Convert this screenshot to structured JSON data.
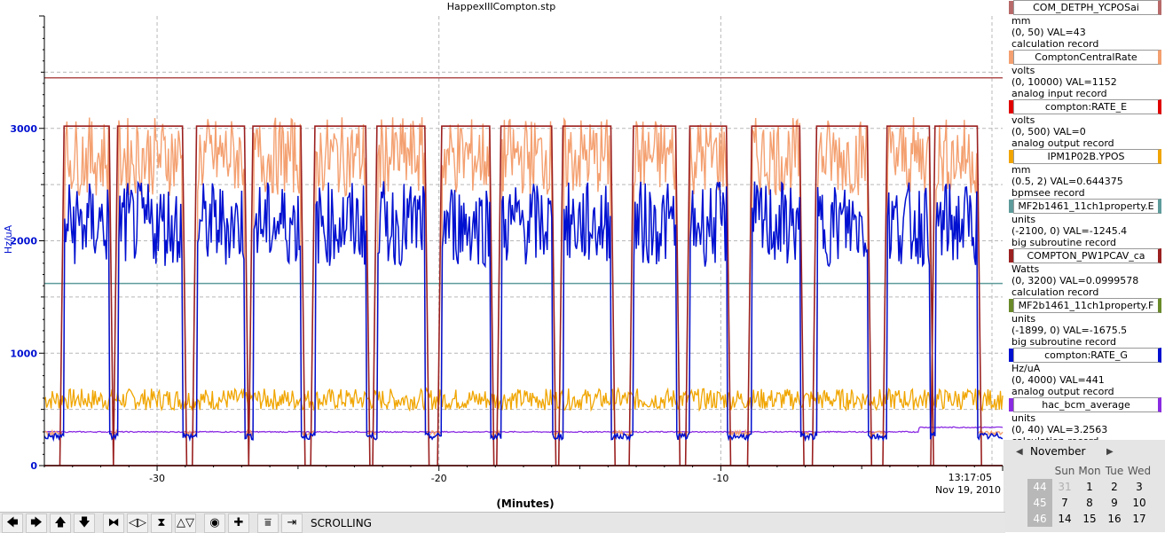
{
  "window": {
    "title": "HappexIIICompton.stp"
  },
  "chart_data": {
    "type": "line",
    "title": "HappexIIICompton.stp",
    "xlabel": "(Minutes)",
    "ylabel": "Hz/uA",
    "xlim": [
      -34,
      0
    ],
    "ylim": [
      0,
      4000
    ],
    "grid": true,
    "x_ticks": [
      "-30",
      "-20",
      "-10"
    ],
    "y_ticks": [
      "0",
      "1000",
      "2000",
      "3000"
    ],
    "time_label": "13:17:05",
    "date_label": "Nov 19, 2010",
    "pulses": [
      {
        "start": -33.3,
        "end": -31.7
      },
      {
        "start": -31.4,
        "end": -29.1
      },
      {
        "start": -28.6,
        "end": -26.9
      },
      {
        "start": -26.6,
        "end": -24.9
      },
      {
        "start": -24.4,
        "end": -22.6
      },
      {
        "start": -22.2,
        "end": -20.5
      },
      {
        "start": -19.9,
        "end": -18.2
      },
      {
        "start": -17.8,
        "end": -16.0
      },
      {
        "start": -15.6,
        "end": -13.9
      },
      {
        "start": -13.1,
        "end": -11.6
      },
      {
        "start": -11.1,
        "end": -9.8
      },
      {
        "start": -8.9,
        "end": -7.2
      },
      {
        "start": -6.6,
        "end": -4.8
      },
      {
        "start": -4.1,
        "end": -2.6
      },
      {
        "start": -2.4,
        "end": -0.9
      }
    ],
    "series": [
      {
        "name": "COM_DETPH_YCPOSai",
        "color": "#b05050",
        "constant": 3450
      },
      {
        "name": "ComptonCentralRate",
        "color": "#f4a070",
        "on_level": 2750,
        "off_level": 290,
        "noise": 350
      },
      {
        "name": "compton:RATE_E",
        "color": "#d40000",
        "constant": 0
      },
      {
        "name": "IPM1P02B.YPOS",
        "color": "#f0a500",
        "base": 590,
        "noise": 120
      },
      {
        "name": "MF2b1461_11ch1property.E",
        "color": "#5e9b9b",
        "constant": 1620
      },
      {
        "name": "COMPTON_PW1PCAV_ca",
        "color": "#9b2020",
        "on_level": 3020,
        "off_level": 0
      },
      {
        "name": "compton:RATE_G",
        "color": "#0010d0",
        "on_level": 2150,
        "off_level": 260,
        "noise": 380
      },
      {
        "name": "hac_bcm_average",
        "color": "#8a2be2",
        "base": 300
      }
    ]
  },
  "legend": [
    {
      "name": "COM_DETPH_YCPOSai",
      "color": "#b86a6a",
      "units": "mm",
      "range": "(0, 50) VAL=43",
      "record": "calculation record"
    },
    {
      "name": "ComptonCentralRate",
      "color": "#f4a070",
      "units": "volts",
      "range": "(0, 10000) VAL=1152",
      "record": "analog input record"
    },
    {
      "name": "compton:RATE_E",
      "color": "#e00000",
      "units": "volts",
      "range": "(0, 500) VAL=0",
      "record": "analog output record"
    },
    {
      "name": "IPM1P02B.YPOS",
      "color": "#f0a500",
      "units": "mm",
      "range": "(0.5, 2) VAL=0.644375",
      "record": "bpmsee record"
    },
    {
      "name": "MF2b1461_11ch1property.E",
      "color": "#5e9b9b",
      "units": "units",
      "range": "(-2100, 0) VAL=-1245.4",
      "record": "big subroutine record"
    },
    {
      "name": "COMPTON_PW1PCAV_ca",
      "color": "#9b2020",
      "units": "Watts",
      "range": "(0, 3200) VAL=0.0999578",
      "record": "calculation record"
    },
    {
      "name": "MF2b1461_11ch1property.F",
      "color": "#6a8a2a",
      "units": "units",
      "range": "(-1899, 0) VAL=-1675.5",
      "record": "big subroutine record"
    },
    {
      "name": "compton:RATE_G",
      "color": "#0010d0",
      "units": "Hz/uA",
      "range": "(0, 4000) VAL=441",
      "record": "analog output record"
    },
    {
      "name": "hac_bcm_average",
      "color": "#8a2be2",
      "units": "units",
      "range": "(0, 40) VAL=3.2563",
      "record": "calculation record"
    }
  ],
  "calendar": {
    "month": "November",
    "weekdays": [
      "Sun",
      "Mon",
      "Tue",
      "Wed"
    ],
    "weeks": [
      {
        "num": "44",
        "days": [
          "31",
          "1",
          "2",
          "3"
        ]
      },
      {
        "num": "45",
        "days": [
          "7",
          "8",
          "9",
          "10"
        ]
      },
      {
        "num": "46",
        "days": [
          "14",
          "15",
          "16",
          "17"
        ]
      }
    ]
  },
  "toolbar": {
    "buttons": [
      {
        "name": "pan-left-button",
        "icon": "arrow-left-icon",
        "glyph": "🡄"
      },
      {
        "name": "pan-right-button",
        "icon": "arrow-right-icon",
        "glyph": "🡆"
      },
      {
        "name": "pan-up-button",
        "icon": "arrow-up-icon",
        "glyph": "🡅"
      },
      {
        "name": "pan-down-button",
        "icon": "arrow-down-icon",
        "glyph": "🡇"
      },
      {
        "name": "zoom-x-in-button",
        "icon": "zoom-x-in-icon",
        "glyph": "⧓"
      },
      {
        "name": "zoom-x-out-button",
        "icon": "zoom-x-out-icon",
        "glyph": "◁▷"
      },
      {
        "name": "zoom-y-in-button",
        "icon": "zoom-y-in-icon",
        "glyph": "⧗"
      },
      {
        "name": "zoom-y-out-button",
        "icon": "zoom-y-out-icon",
        "glyph": "△▽"
      },
      {
        "name": "config-button",
        "icon": "circle-icon",
        "glyph": "◉"
      },
      {
        "name": "add-button",
        "icon": "plus-icon",
        "glyph": "✚"
      },
      {
        "name": "stack-button",
        "icon": "stack-icon",
        "glyph": "⩸"
      },
      {
        "name": "jump-right-button",
        "icon": "jump-right-icon",
        "glyph": "⇥"
      }
    ],
    "status": "SCROLLING"
  }
}
